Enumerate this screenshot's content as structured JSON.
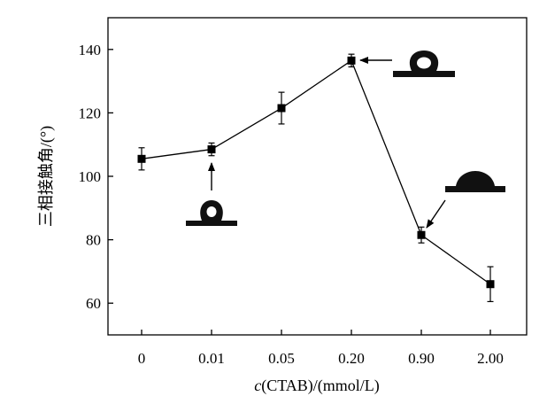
{
  "chart_data": {
    "type": "line",
    "categories": [
      "0",
      "0.01",
      "0.05",
      "0.20",
      "0.90",
      "2.00"
    ],
    "series": [
      {
        "values": [
          105.5,
          108.5,
          121.5,
          136.5,
          81.5,
          66
        ],
        "error": [
          3.5,
          2.0,
          5.0,
          2.0,
          2.5,
          5.5
        ]
      }
    ],
    "xlabel_italic": "c",
    "xlabel_rest": "(CTAB)/(mmol/L)",
    "ylabel": "三相接触角/(°)",
    "yticks": [
      60,
      80,
      100,
      120,
      140
    ],
    "ylim": [
      50,
      150
    ],
    "grid": false,
    "legend": "none",
    "annotations": [
      {
        "target_index": 1,
        "arrow": "up",
        "droplet": "high-contact-angle"
      },
      {
        "target_index": 3,
        "arrow": "left",
        "droplet": "very-high-contact-angle"
      },
      {
        "target_index": 4,
        "arrow": "down-left",
        "droplet": "low-contact-angle"
      }
    ]
  }
}
